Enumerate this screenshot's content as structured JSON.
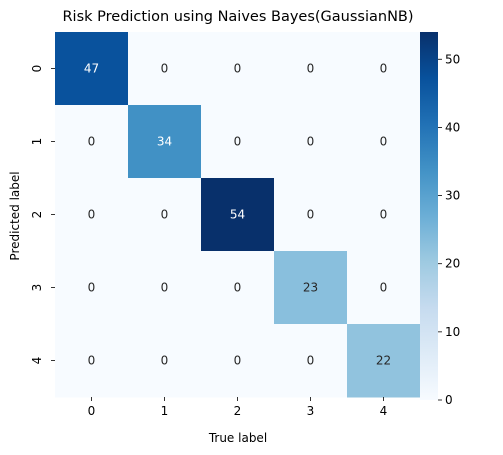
{
  "chart_data": {
    "type": "heatmap",
    "title": "Risk Prediction using Naives Bayes(GaussianNB)",
    "xlabel": "True label",
    "ylabel": "Predicted label",
    "x_categories": [
      "0",
      "1",
      "2",
      "3",
      "4"
    ],
    "y_categories": [
      "0",
      "1",
      "2",
      "3",
      "4"
    ],
    "values": [
      [
        47,
        0,
        0,
        0,
        0
      ],
      [
        0,
        34,
        0,
        0,
        0
      ],
      [
        0,
        0,
        54,
        0,
        0
      ],
      [
        0,
        0,
        0,
        23,
        0
      ],
      [
        0,
        0,
        0,
        0,
        22
      ]
    ],
    "vmin": 0,
    "vmax": 54,
    "colorbar_ticks": [
      0,
      10,
      20,
      30,
      40,
      50
    ],
    "colormap": "Blues",
    "colors": {
      "low": "#f7fbff",
      "high": "#08306b"
    },
    "annotation_colors": {
      "light": "#ffffff",
      "dark": "#262626"
    }
  }
}
